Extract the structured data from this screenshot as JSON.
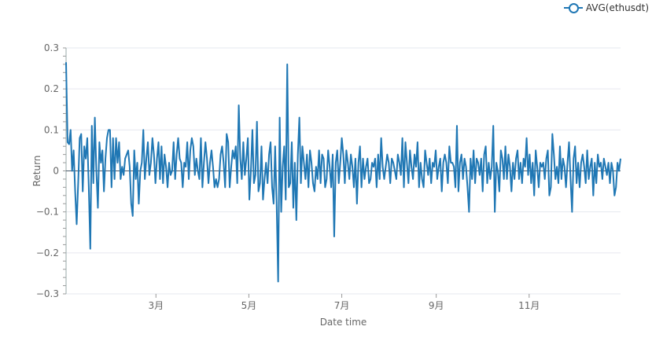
{
  "chart_data": {
    "type": "line",
    "title": "",
    "xlabel": "Date time",
    "ylabel": "Return",
    "ylim": [
      -0.3,
      0.3
    ],
    "yticks": [
      0.3,
      0.2,
      0.1,
      0,
      -0.1,
      -0.2,
      -0.3
    ],
    "ytick_labels": [
      "0.3",
      "0.2",
      "0.1",
      "0",
      "−0.1",
      "−0.2",
      "−0.3"
    ],
    "xlim": [
      "2021-01-01",
      "2021-12-31"
    ],
    "xticks": [
      {
        "date": "2021-03-01",
        "label": "3月"
      },
      {
        "date": "2021-05-01",
        "label": "5月"
      },
      {
        "date": "2021-07-01",
        "label": "7月"
      },
      {
        "date": "2021-09-01",
        "label": "9月"
      },
      {
        "date": "2021-11-01",
        "label": "11月"
      }
    ],
    "grid": true,
    "legend_position": "top-right",
    "series": [
      {
        "name": "AVG(ethusdt)",
        "color": "#1f77b4",
        "x_start": "2021-01-01",
        "x_step_days": 1,
        "values": [
          0.265,
          0.07,
          0.065,
          0.1,
          0.0,
          0.05,
          -0.05,
          -0.13,
          -0.03,
          0.08,
          0.09,
          -0.05,
          0.06,
          0.03,
          0.08,
          -0.04,
          -0.19,
          0.11,
          -0.03,
          0.13,
          0.0,
          -0.09,
          0.07,
          0.02,
          0.05,
          -0.05,
          0.03,
          0.08,
          0.1,
          0.1,
          -0.04,
          0.08,
          -0.02,
          0.08,
          0.02,
          0.07,
          -0.02,
          0.01,
          -0.01,
          0.03,
          0.04,
          0.05,
          0.01,
          -0.08,
          -0.11,
          0.05,
          -0.02,
          0.02,
          -0.08,
          0.0,
          0.02,
          0.1,
          -0.02,
          0.03,
          0.07,
          -0.01,
          0.02,
          0.08,
          0.04,
          -0.03,
          0.03,
          0.07,
          -0.02,
          0.06,
          -0.03,
          0.04,
          0.01,
          -0.04,
          0.02,
          -0.01,
          0.0,
          0.07,
          -0.02,
          0.04,
          0.08,
          0.03,
          0.02,
          -0.04,
          0.02,
          0.01,
          0.07,
          -0.02,
          0.05,
          0.08,
          0.06,
          -0.01,
          0.03,
          0.0,
          -0.02,
          0.08,
          -0.04,
          0.02,
          0.07,
          0.03,
          -0.03,
          0.02,
          0.05,
          0.01,
          -0.04,
          -0.02,
          -0.04,
          -0.02,
          0.04,
          0.06,
          0.02,
          -0.04,
          0.09,
          0.07,
          -0.04,
          0.01,
          0.05,
          0.03,
          0.06,
          -0.03,
          0.16,
          0.03,
          -0.02,
          0.07,
          -0.01,
          0.03,
          0.08,
          -0.07,
          0.0,
          0.1,
          -0.03,
          -0.01,
          0.12,
          -0.05,
          -0.03,
          0.06,
          -0.07,
          -0.02,
          0.02,
          -0.03,
          0.04,
          0.07,
          -0.04,
          -0.08,
          0.06,
          -0.08,
          -0.27,
          0.13,
          -0.1,
          0.01,
          0.06,
          -0.07,
          0.26,
          -0.04,
          -0.03,
          0.07,
          -0.09,
          0.02,
          -0.12,
          0.04,
          0.13,
          -0.03,
          0.06,
          0.02,
          -0.02,
          0.04,
          -0.04,
          0.05,
          0.02,
          -0.03,
          -0.05,
          0.01,
          -0.02,
          0.05,
          -0.03,
          0.04,
          0.03,
          -0.04,
          -0.02,
          0.05,
          0.01,
          -0.04,
          0.04,
          -0.16,
          0.02,
          0.05,
          -0.03,
          0.02,
          0.08,
          0.04,
          -0.03,
          0.05,
          0.02,
          -0.02,
          0.04,
          0.01,
          -0.04,
          0.03,
          -0.08,
          0.02,
          0.06,
          -0.04,
          0.03,
          -0.02,
          0.01,
          0.03,
          -0.03,
          -0.02,
          0.02,
          0.01,
          0.03,
          -0.04,
          0.04,
          -0.02,
          0.08,
          0.01,
          -0.02,
          0.01,
          0.04,
          0.02,
          -0.03,
          0.03,
          0.02,
          0.0,
          -0.02,
          0.04,
          0.02,
          -0.01,
          0.08,
          -0.04,
          0.07,
          0.02,
          -0.03,
          0.05,
          0.01,
          -0.02,
          0.04,
          0.01,
          0.07,
          -0.04,
          0.02,
          -0.02,
          -0.04,
          0.05,
          0.02,
          -0.01,
          0.03,
          -0.03,
          0.02,
          0.01,
          0.05,
          -0.02,
          0.01,
          0.03,
          -0.05,
          0.02,
          0.04,
          0.02,
          -0.03,
          0.06,
          0.02,
          0.02,
          0.01,
          -0.04,
          0.11,
          -0.05,
          0.02,
          0.04,
          -0.02,
          0.03,
          0.01,
          -0.04,
          -0.1,
          0.03,
          -0.02,
          0.05,
          -0.03,
          0.03,
          0.02,
          -0.01,
          0.03,
          -0.05,
          0.04,
          0.06,
          -0.03,
          0.02,
          -0.02,
          0.01,
          0.11,
          -0.1,
          0.02,
          0.0,
          -0.05,
          0.05,
          0.03,
          -0.02,
          0.06,
          -0.02,
          0.04,
          0.01,
          -0.05,
          0.02,
          -0.02,
          0.03,
          0.05,
          -0.02,
          0.02,
          -0.03,
          0.03,
          0.01,
          0.08,
          -0.01,
          0.04,
          -0.03,
          0.02,
          -0.06,
          0.05,
          0.01,
          -0.04,
          0.02,
          0.01,
          0.02,
          -0.02,
          0.03,
          0.05,
          -0.06,
          -0.04,
          0.09,
          0.04,
          -0.02,
          0.01,
          -0.03,
          0.06,
          -0.02,
          0.03,
          0.01,
          -0.04,
          0.02,
          0.07,
          -0.02,
          -0.1,
          0.03,
          0.06,
          -0.03,
          0.02,
          -0.04,
          0.02,
          0.04,
          0.01,
          -0.03,
          0.05,
          -0.02,
          0.01,
          0.03,
          -0.06,
          0.02,
          -0.03,
          0.04,
          0.01,
          0.02,
          -0.02,
          0.03,
          0.01,
          -0.01,
          0.02,
          -0.03,
          0.02,
          0.0,
          -0.06,
          -0.04,
          0.02,
          0.0,
          0.03
        ]
      }
    ]
  }
}
